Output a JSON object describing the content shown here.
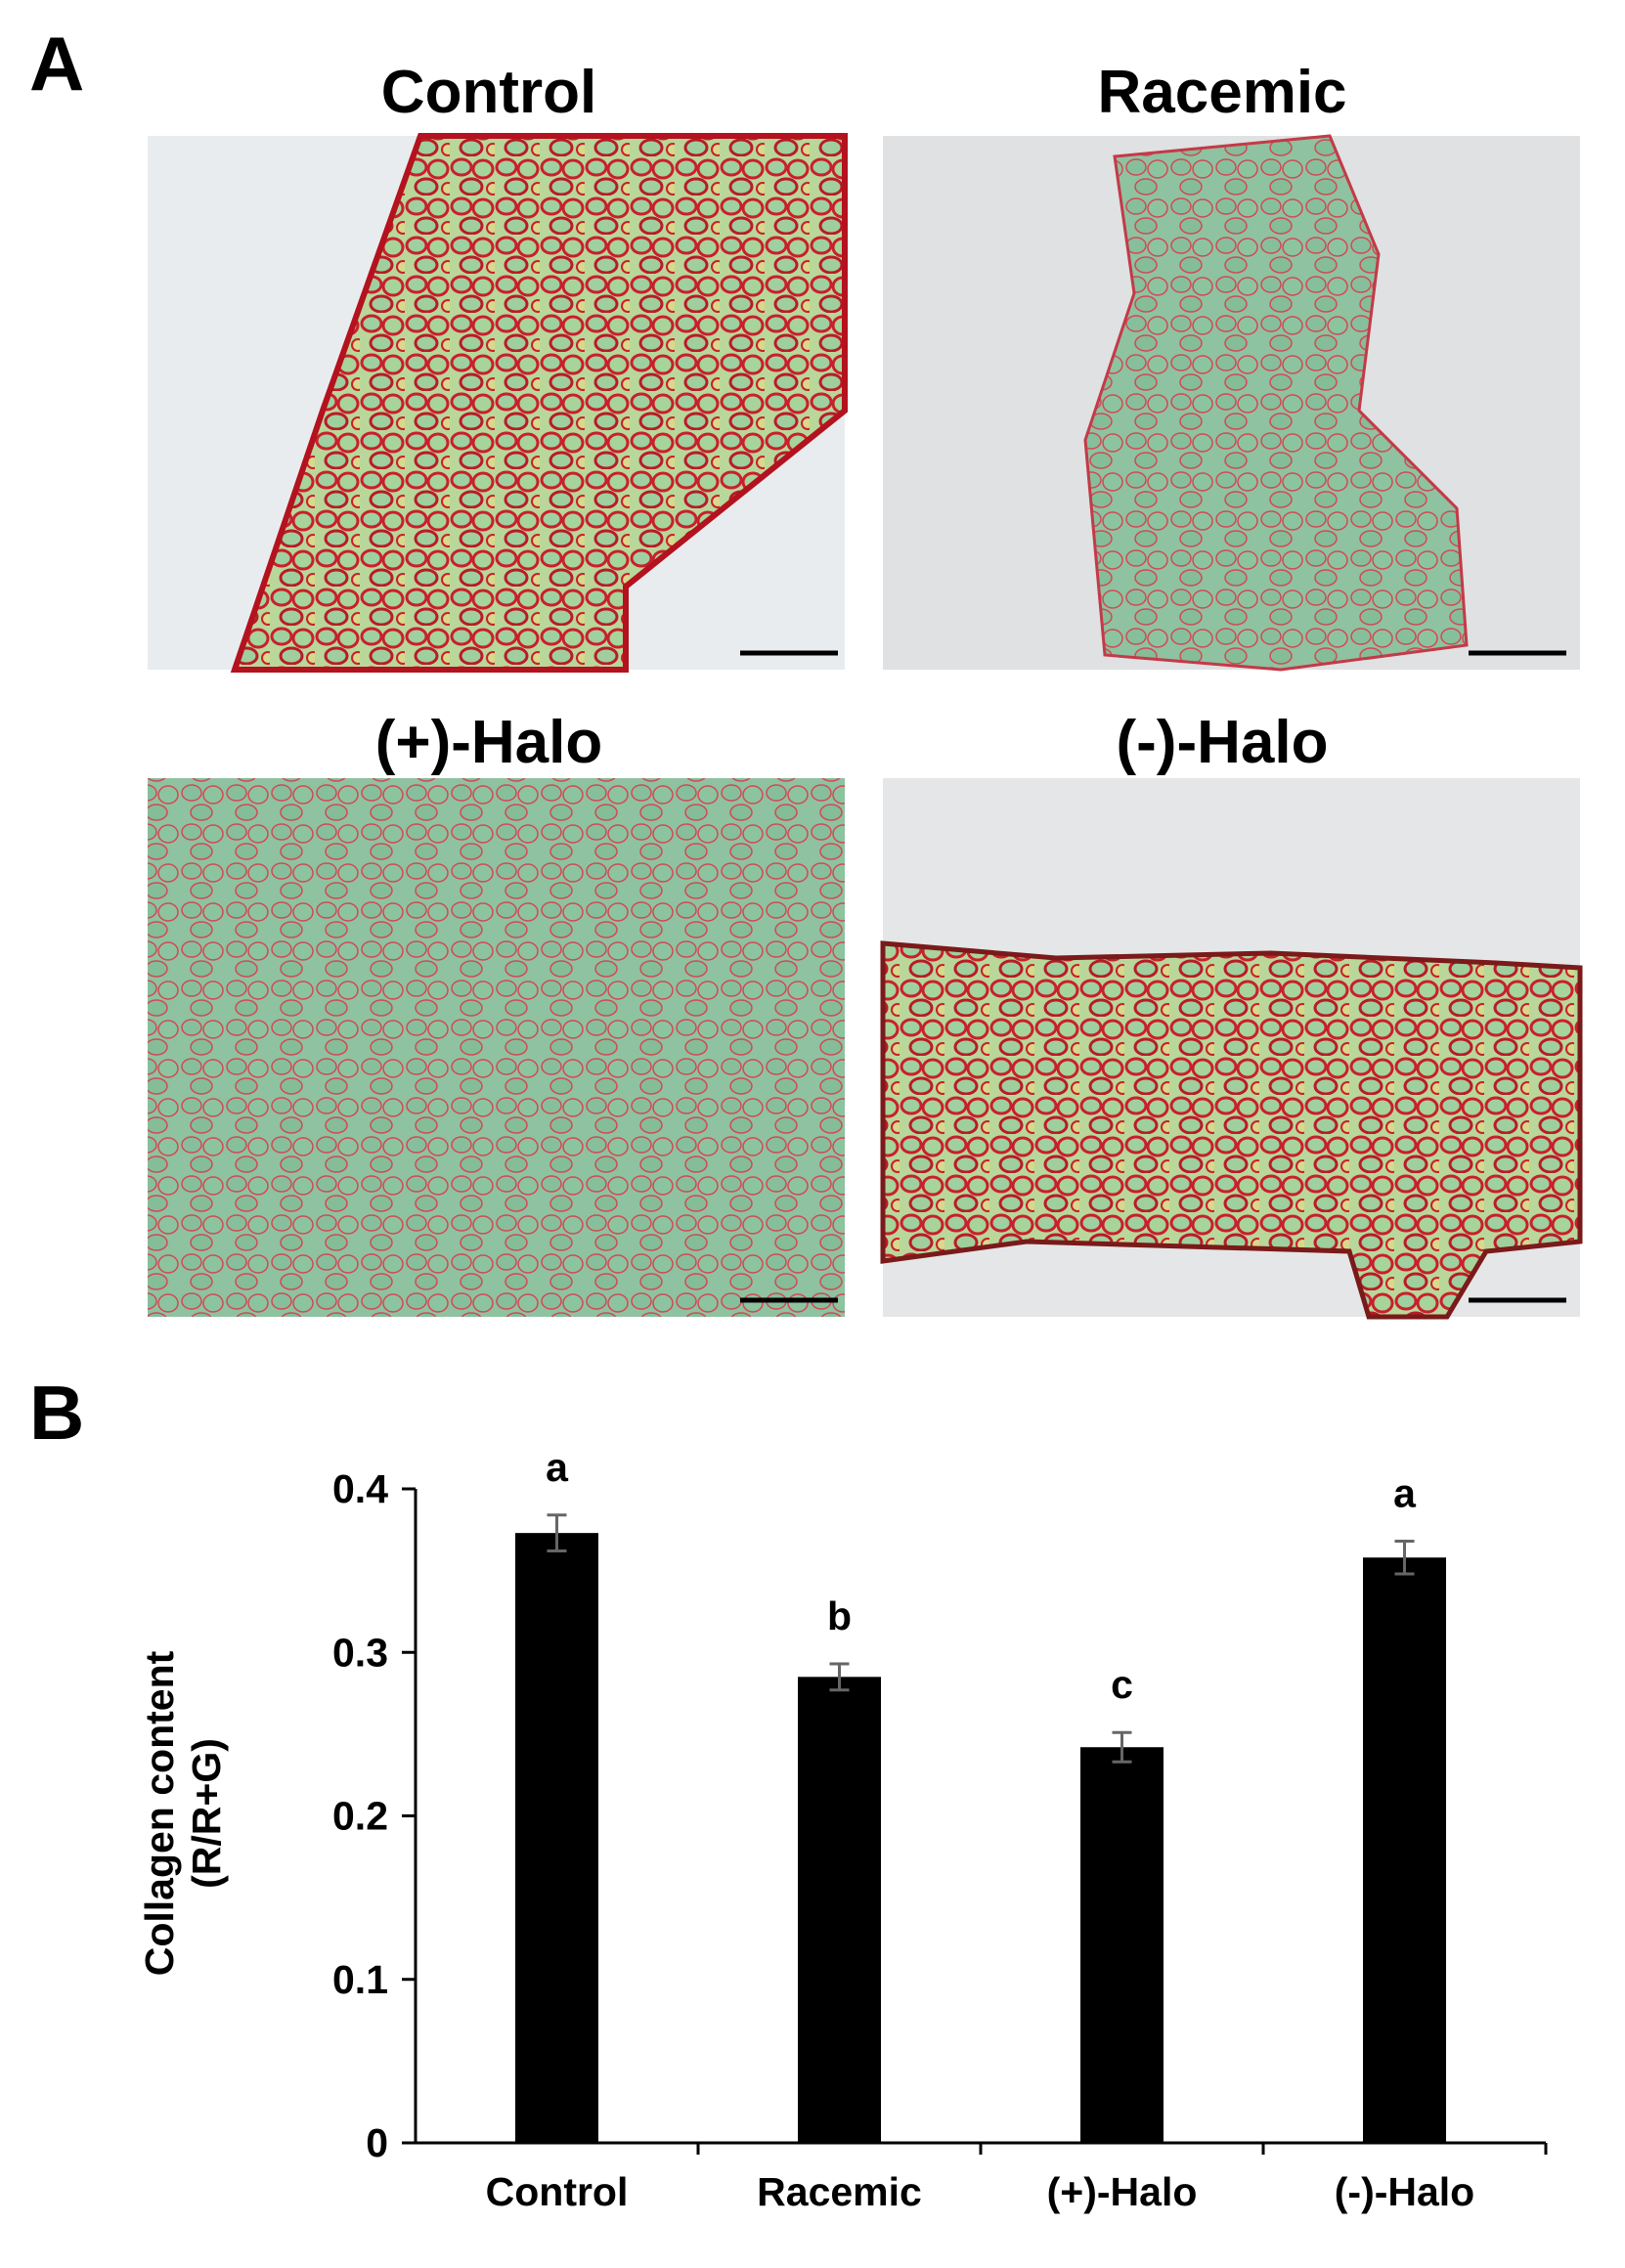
{
  "panel_a": {
    "label": "A",
    "images": [
      {
        "title": "Control"
      },
      {
        "title": "Racemic"
      },
      {
        "title": "(+)-Halo"
      },
      {
        "title": "(-)-Halo"
      }
    ]
  },
  "chart_data": {
    "type": "bar",
    "panel_label": "B",
    "y_label": [
      "Collagen content",
      "(R/R+G)"
    ],
    "categories": [
      "Control",
      "Racemic",
      "(+)-Halo",
      "(-)-Halo"
    ],
    "values": [
      0.373,
      0.285,
      0.242,
      0.358
    ],
    "errors": [
      0.011,
      0.008,
      0.009,
      0.01
    ],
    "annotations": [
      "a",
      "b",
      "c",
      "a"
    ],
    "color": "#000000",
    "ylim": [
      0,
      0.4
    ],
    "yticks": [
      0,
      0.1,
      0.2,
      0.3,
      0.4
    ],
    "grid": false
  }
}
